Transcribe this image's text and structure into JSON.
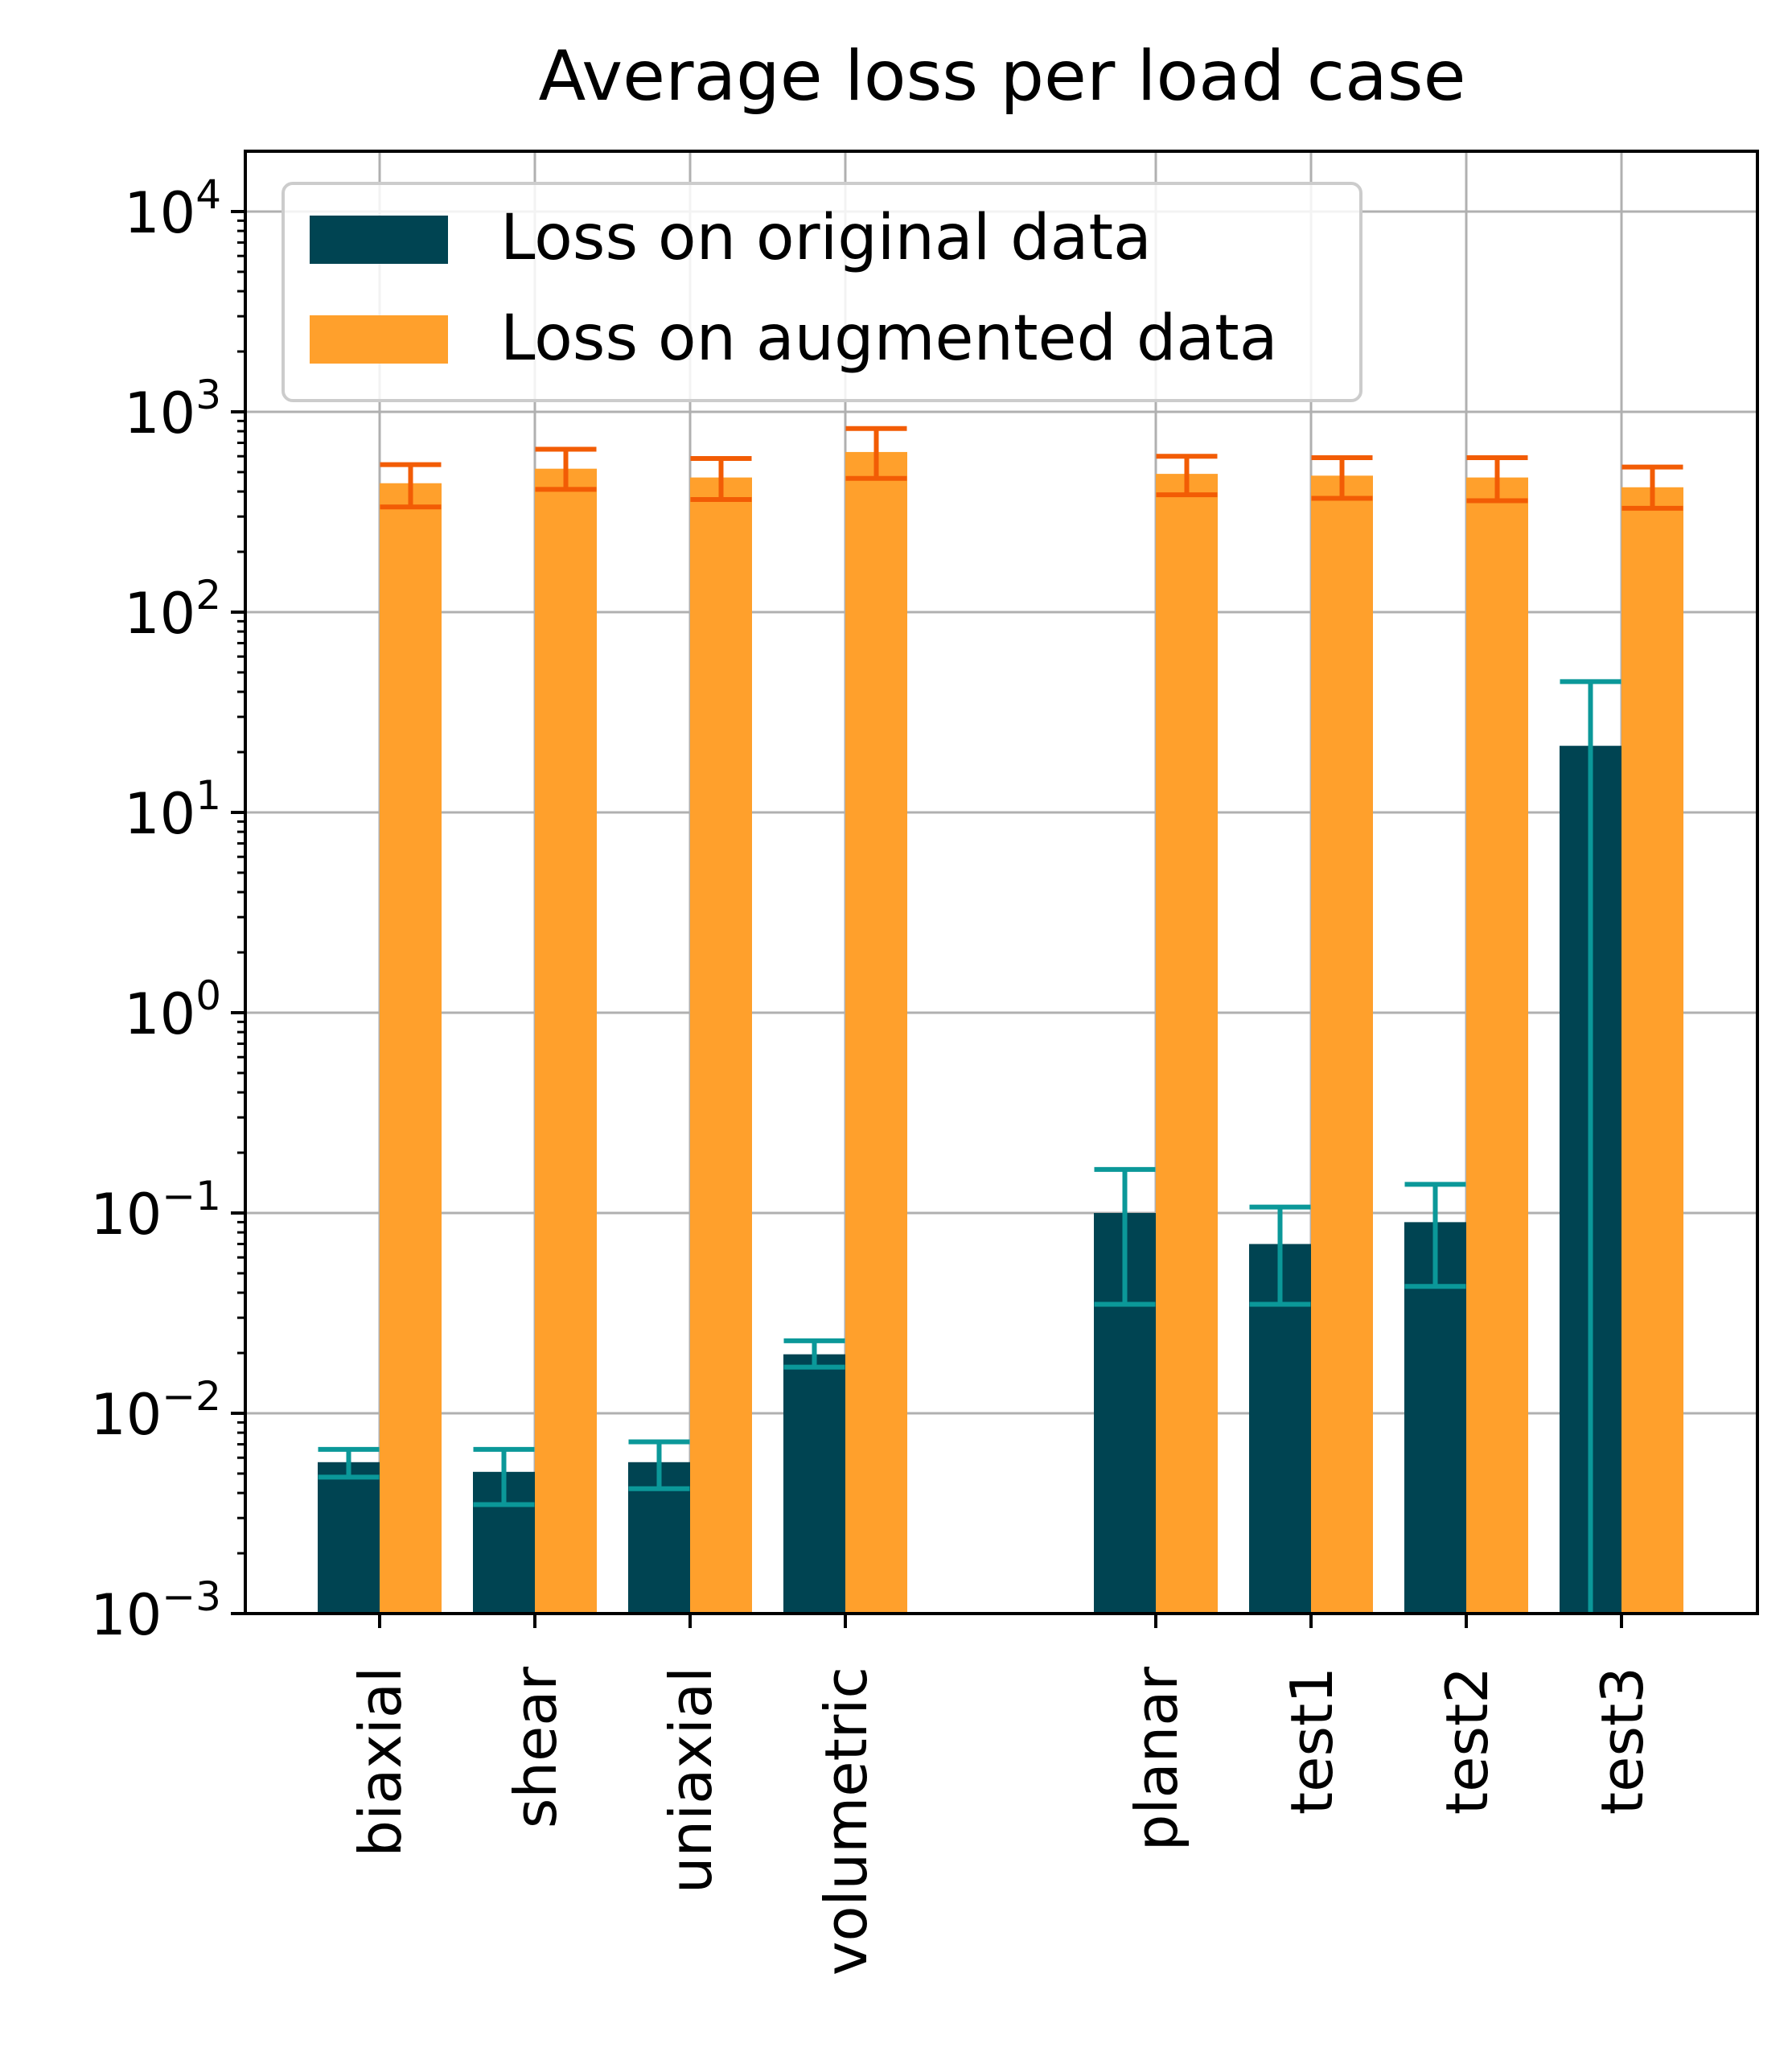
{
  "chart_data": {
    "type": "bar",
    "title": "Average loss per load case",
    "xlabel": "",
    "ylabel": "",
    "yscale": "log",
    "ylim": [
      0.001,
      20000
    ],
    "yticks": [
      {
        "value": 0.001,
        "base": "10",
        "exp": "−3"
      },
      {
        "value": 0.01,
        "base": "10",
        "exp": "−2"
      },
      {
        "value": 0.1,
        "base": "10",
        "exp": "−1"
      },
      {
        "value": 1,
        "base": "10",
        "exp": "0"
      },
      {
        "value": 10,
        "base": "10",
        "exp": "1"
      },
      {
        "value": 100,
        "base": "10",
        "exp": "2"
      },
      {
        "value": 1000,
        "base": "10",
        "exp": "3"
      },
      {
        "value": 10000,
        "base": "10",
        "exp": "4"
      }
    ],
    "grid": true,
    "legend_position": "top-left",
    "categories": [
      "biaxial",
      "shear",
      "uniaxial",
      "volumetric",
      "planar",
      "test1",
      "test2",
      "test3"
    ],
    "category_slots": [
      0,
      1,
      2,
      3,
      5,
      6,
      7,
      8
    ],
    "series": [
      {
        "name": "Loss on original data",
        "color": "#004452",
        "error_color": "#0b9899",
        "values": [
          0.0057,
          0.0051,
          0.0057,
          0.0197,
          0.1,
          0.07,
          0.09,
          21.5
        ],
        "err_low": [
          0.0048,
          0.0035,
          0.0042,
          0.017,
          0.035,
          0.035,
          0.043,
          0.001
        ],
        "err_high": [
          0.0066,
          0.0066,
          0.0072,
          0.023,
          0.165,
          0.107,
          0.139,
          45.0
        ]
      },
      {
        "name": "Loss on augmented data",
        "color": "#ffa02c",
        "error_color": "#f25c05",
        "values": [
          440,
          520,
          470,
          630,
          490,
          480,
          470,
          420
        ],
        "err_low": [
          335,
          410,
          365,
          465,
          385,
          370,
          360,
          330
        ],
        "err_high": [
          545,
          650,
          585,
          825,
          600,
          590,
          590,
          530
        ]
      }
    ]
  }
}
